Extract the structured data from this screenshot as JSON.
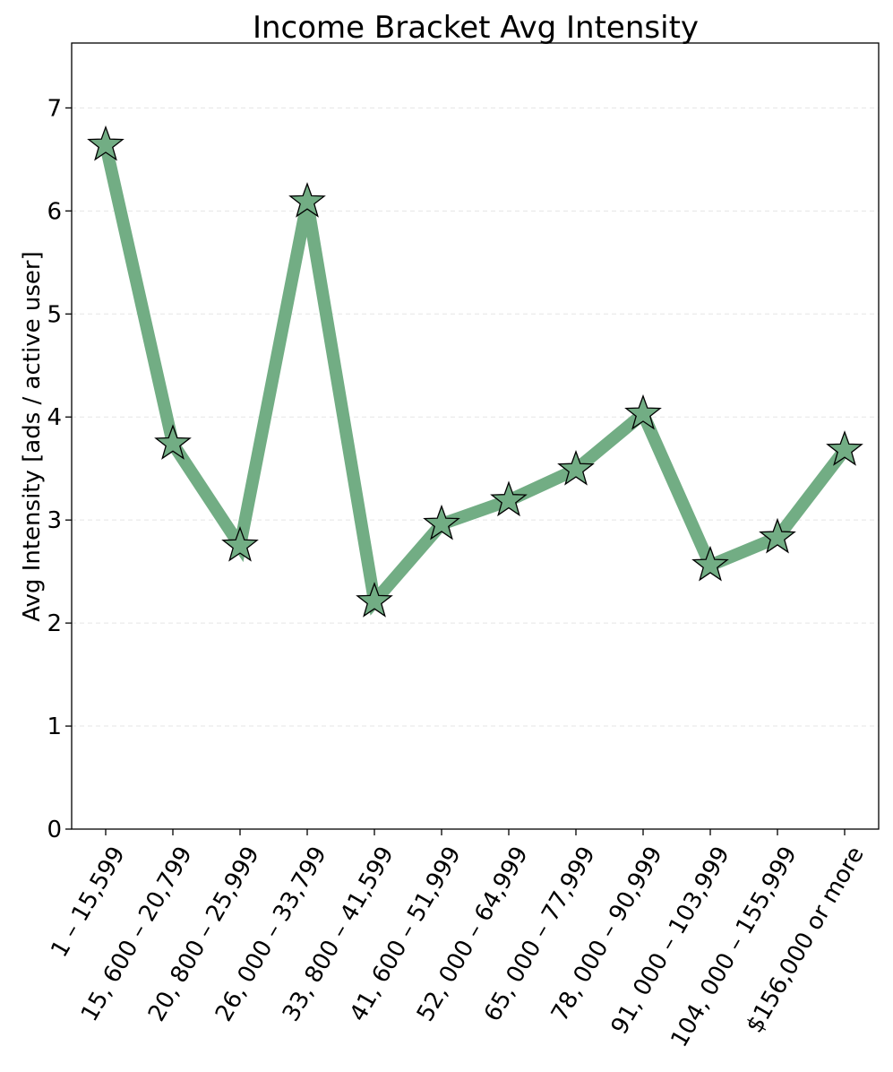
{
  "chart_data": {
    "type": "line",
    "title": "Income Bracket Avg Intensity",
    "xlabel": "",
    "ylabel": "Avg Intensity [ads / active user]",
    "categories": [
      "1 – 15,599",
      "15, 600 – 20,799",
      "20, 800 – 25,999",
      "26, 000 – 33,799",
      "33, 800 – 41,599",
      "41, 600 – 51,999",
      "52, 000 – 64,999",
      "65, 000 – 77,999",
      "78, 000 – 90,999",
      "91, 000 – 103,999",
      "104, 000 – 155,999",
      "$156,000 or more"
    ],
    "values": [
      6.64,
      3.74,
      2.75,
      6.09,
      2.21,
      2.96,
      3.19,
      3.49,
      4.03,
      2.56,
      2.83,
      3.68
    ],
    "ylim": [
      0,
      7.63
    ],
    "yticks": [
      0,
      1,
      2,
      3,
      4,
      5,
      6,
      7
    ],
    "grid": "horizontal dashed",
    "marker": "star",
    "colors": {
      "line": "#72ad84",
      "marker_fill": "#72ad84",
      "marker_edge": "#000000",
      "grid": "#e5e5e5",
      "axis": "#000000"
    }
  }
}
